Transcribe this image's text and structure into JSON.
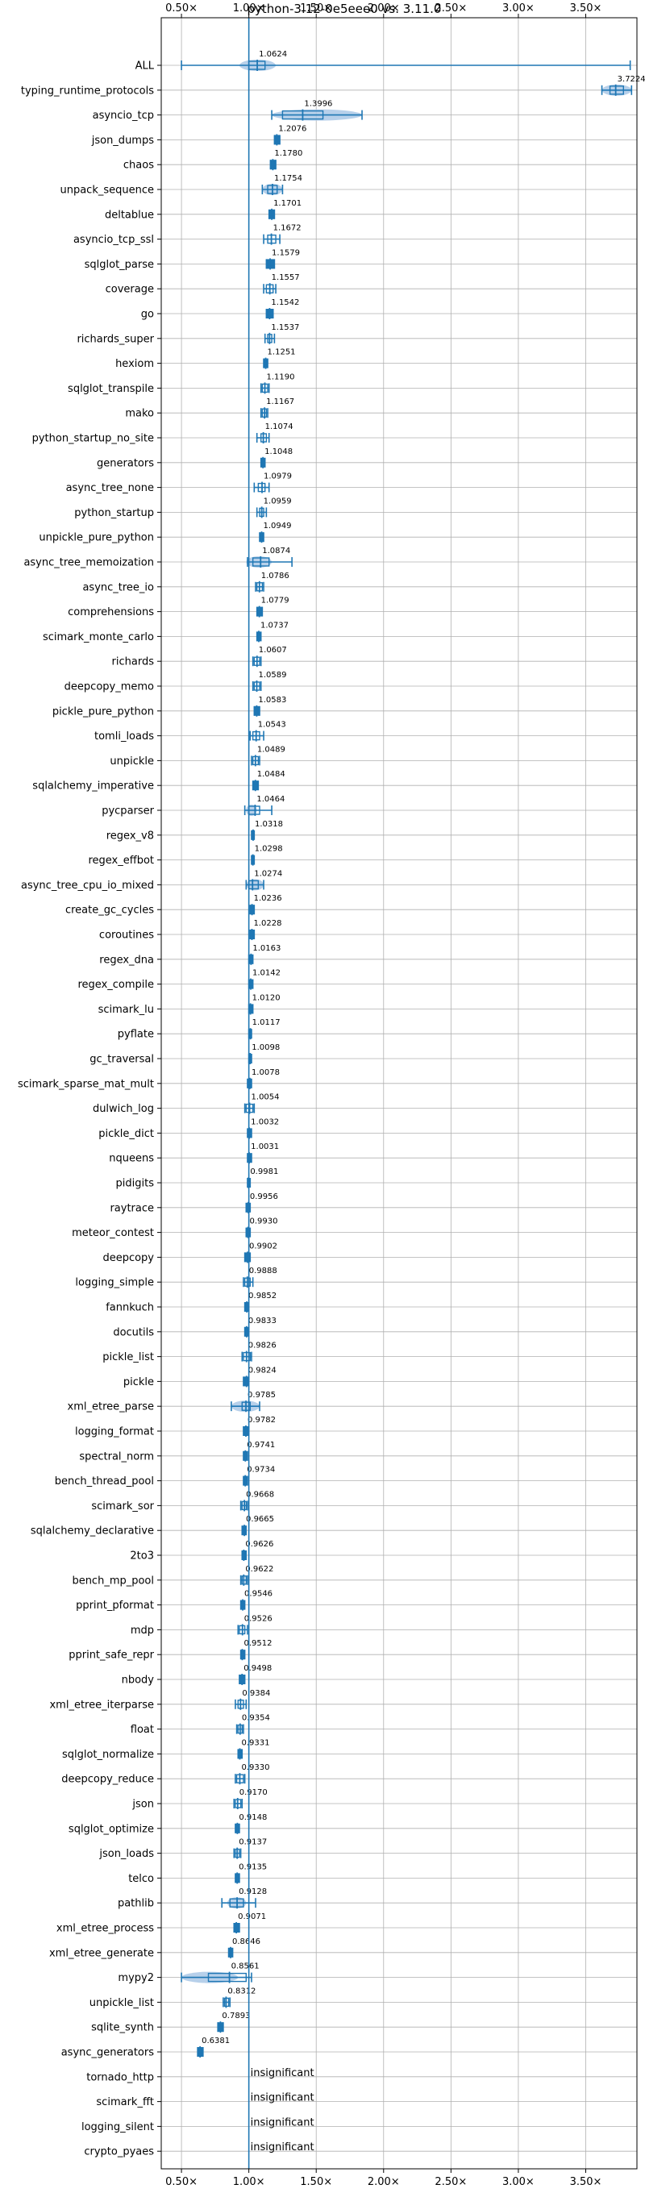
{
  "chart_data": {
    "type": "violin",
    "title": "python-3.12-0e5eee0 vs. 3.11.0",
    "xlim": [
      0.35,
      3.88
    ],
    "reference_line": 1.0,
    "x_ticks": [
      0.5,
      1.0,
      1.5,
      2.0,
      2.5,
      3.0,
      3.5
    ],
    "x_tick_labels": [
      "0.50×",
      "1.00×",
      "1.50×",
      "2.00×",
      "2.50×",
      "3.00×",
      "3.50×"
    ],
    "grid": true,
    "color": "#1f77b4",
    "violin_color": "#aac8e6",
    "benchmarks": [
      {
        "name": "ALL",
        "value": 1.0624,
        "label": "1.0624",
        "min": 0.5,
        "max": 3.83,
        "q1": 1.0,
        "q3": 1.12,
        "vmin": 0.93,
        "vmax": 1.2
      },
      {
        "name": "typing_runtime_protocols",
        "value": 3.7224,
        "label": "3.7224",
        "min": 3.62,
        "max": 3.84,
        "q1": 3.68,
        "q3": 3.78
      },
      {
        "name": "asyncio_tcp",
        "value": 1.3996,
        "label": "1.3996",
        "min": 1.17,
        "max": 1.84,
        "q1": 1.25,
        "q3": 1.55
      },
      {
        "name": "json_dumps",
        "value": 1.2076,
        "label": "1.2076",
        "min": 1.19,
        "max": 1.23
      },
      {
        "name": "chaos",
        "value": 1.178,
        "label": "1.1780",
        "min": 1.16,
        "max": 1.2
      },
      {
        "name": "unpack_sequence",
        "value": 1.1754,
        "label": "1.1754",
        "min": 1.1,
        "max": 1.25,
        "q1": 1.14,
        "q3": 1.21
      },
      {
        "name": "deltablue",
        "value": 1.1701,
        "label": "1.1701",
        "min": 1.15,
        "max": 1.19
      },
      {
        "name": "asyncio_tcp_ssl",
        "value": 1.1672,
        "label": "1.1672",
        "min": 1.11,
        "max": 1.23,
        "q1": 1.14,
        "q3": 1.2
      },
      {
        "name": "sqlglot_parse",
        "value": 1.1579,
        "label": "1.1579",
        "min": 1.13,
        "max": 1.19
      },
      {
        "name": "coverage",
        "value": 1.1557,
        "label": "1.1557",
        "min": 1.11,
        "max": 1.2,
        "q1": 1.13,
        "q3": 1.18
      },
      {
        "name": "go",
        "value": 1.1542,
        "label": "1.1542",
        "min": 1.13,
        "max": 1.18
      },
      {
        "name": "richards_super",
        "value": 1.1537,
        "label": "1.1537",
        "min": 1.12,
        "max": 1.19,
        "q1": 1.14,
        "q3": 1.17
      },
      {
        "name": "hexiom",
        "value": 1.1251,
        "label": "1.1251",
        "min": 1.11,
        "max": 1.14
      },
      {
        "name": "sqlglot_transpile",
        "value": 1.119,
        "label": "1.1190",
        "min": 1.09,
        "max": 1.15,
        "q1": 1.1,
        "q3": 1.14
      },
      {
        "name": "mako",
        "value": 1.1167,
        "label": "1.1167",
        "min": 1.09,
        "max": 1.14,
        "q1": 1.1,
        "q3": 1.13
      },
      {
        "name": "python_startup_no_site",
        "value": 1.1074,
        "label": "1.1074",
        "min": 1.06,
        "max": 1.15,
        "q1": 1.09,
        "q3": 1.13
      },
      {
        "name": "generators",
        "value": 1.1048,
        "label": "1.1048",
        "min": 1.09,
        "max": 1.12
      },
      {
        "name": "async_tree_none",
        "value": 1.0979,
        "label": "1.0979",
        "min": 1.04,
        "max": 1.15,
        "q1": 1.07,
        "q3": 1.12
      },
      {
        "name": "python_startup",
        "value": 1.0959,
        "label": "1.0959",
        "min": 1.06,
        "max": 1.13,
        "q1": 1.08,
        "q3": 1.11
      },
      {
        "name": "unpickle_pure_python",
        "value": 1.0949,
        "label": "1.0949",
        "min": 1.08,
        "max": 1.11
      },
      {
        "name": "async_tree_memoization",
        "value": 1.0874,
        "label": "1.0874",
        "min": 0.99,
        "max": 1.32,
        "q1": 1.03,
        "q3": 1.15,
        "vmin": 0.98,
        "vmax": 1.17
      },
      {
        "name": "async_tree_io",
        "value": 1.0786,
        "label": "1.0786",
        "min": 1.05,
        "max": 1.11,
        "q1": 1.06,
        "q3": 1.1
      },
      {
        "name": "comprehensions",
        "value": 1.0779,
        "label": "1.0779",
        "min": 1.06,
        "max": 1.1
      },
      {
        "name": "scimark_monte_carlo",
        "value": 1.0737,
        "label": "1.0737",
        "min": 1.06,
        "max": 1.09
      },
      {
        "name": "richards",
        "value": 1.0607,
        "label": "1.0607",
        "min": 1.03,
        "max": 1.09,
        "q1": 1.04,
        "q3": 1.08
      },
      {
        "name": "deepcopy_memo",
        "value": 1.0589,
        "label": "1.0589",
        "min": 1.03,
        "max": 1.09,
        "q1": 1.04,
        "q3": 1.08
      },
      {
        "name": "pickle_pure_python",
        "value": 1.0583,
        "label": "1.0583",
        "min": 1.04,
        "max": 1.08
      },
      {
        "name": "tomli_loads",
        "value": 1.0543,
        "label": "1.0543",
        "min": 1.01,
        "max": 1.11,
        "q1": 1.03,
        "q3": 1.08
      },
      {
        "name": "unpickle",
        "value": 1.0489,
        "label": "1.0489",
        "min": 1.02,
        "max": 1.08,
        "q1": 1.03,
        "q3": 1.07
      },
      {
        "name": "sqlalchemy_imperative",
        "value": 1.0484,
        "label": "1.0484",
        "min": 1.03,
        "max": 1.07
      },
      {
        "name": "pycparser",
        "value": 1.0464,
        "label": "1.0464",
        "min": 0.97,
        "max": 1.17,
        "q1": 1.0,
        "q3": 1.08,
        "vmin": 0.98,
        "vmax": 1.06
      },
      {
        "name": "regex_v8",
        "value": 1.0318,
        "label": "1.0318",
        "min": 1.02,
        "max": 1.04
      },
      {
        "name": "regex_effbot",
        "value": 1.0298,
        "label": "1.0298",
        "min": 1.02,
        "max": 1.04
      },
      {
        "name": "async_tree_cpu_io_mixed",
        "value": 1.0274,
        "label": "1.0274",
        "min": 0.98,
        "max": 1.11,
        "q1": 1.0,
        "q3": 1.07
      },
      {
        "name": "create_gc_cycles",
        "value": 1.0236,
        "label": "1.0236",
        "min": 1.01,
        "max": 1.04
      },
      {
        "name": "coroutines",
        "value": 1.0228,
        "label": "1.0228",
        "min": 1.01,
        "max": 1.04
      },
      {
        "name": "regex_dna",
        "value": 1.0163,
        "label": "1.0163",
        "min": 1.0,
        "max": 1.03
      },
      {
        "name": "regex_compile",
        "value": 1.0142,
        "label": "1.0142",
        "min": 1.0,
        "max": 1.03
      },
      {
        "name": "scimark_lu",
        "value": 1.012,
        "label": "1.0120",
        "min": 1.0,
        "max": 1.03
      },
      {
        "name": "pyflate",
        "value": 1.0117,
        "label": "1.0117",
        "min": 1.0,
        "max": 1.02
      },
      {
        "name": "gc_traversal",
        "value": 1.0098,
        "label": "1.0098",
        "min": 1.0,
        "max": 1.02
      },
      {
        "name": "scimark_sparse_mat_mult",
        "value": 1.0078,
        "label": "1.0078",
        "min": 0.99,
        "max": 1.02
      },
      {
        "name": "dulwich_log",
        "value": 1.0054,
        "label": "1.0054",
        "min": 0.97,
        "max": 1.04,
        "q1": 0.98,
        "q3": 1.03
      },
      {
        "name": "pickle_dict",
        "value": 1.0032,
        "label": "1.0032",
        "min": 0.99,
        "max": 1.02
      },
      {
        "name": "nqueens",
        "value": 1.0031,
        "label": "1.0031",
        "min": 0.99,
        "max": 1.02
      },
      {
        "name": "pidigits",
        "value": 0.9981,
        "label": "0.9981",
        "min": 0.99,
        "max": 1.01
      },
      {
        "name": "raytrace",
        "value": 0.9956,
        "label": "0.9956",
        "min": 0.98,
        "max": 1.01
      },
      {
        "name": "meteor_contest",
        "value": 0.993,
        "label": "0.9930",
        "min": 0.98,
        "max": 1.01
      },
      {
        "name": "deepcopy",
        "value": 0.9902,
        "label": "0.9902",
        "min": 0.97,
        "max": 1.01
      },
      {
        "name": "logging_simple",
        "value": 0.9888,
        "label": "0.9888",
        "min": 0.96,
        "max": 1.03,
        "q1": 0.97,
        "q3": 1.01
      },
      {
        "name": "fannkuch",
        "value": 0.9852,
        "label": "0.9852",
        "min": 0.97,
        "max": 1.0
      },
      {
        "name": "docutils",
        "value": 0.9833,
        "label": "0.9833",
        "min": 0.97,
        "max": 1.0
      },
      {
        "name": "pickle_list",
        "value": 0.9826,
        "label": "0.9826",
        "min": 0.95,
        "max": 1.02,
        "q1": 0.96,
        "q3": 1.01
      },
      {
        "name": "pickle",
        "value": 0.9824,
        "label": "0.9824",
        "min": 0.96,
        "max": 1.0
      },
      {
        "name": "xml_etree_parse",
        "value": 0.9785,
        "label": "0.9785",
        "min": 0.87,
        "max": 1.08,
        "q1": 0.95,
        "q3": 1.01
      },
      {
        "name": "logging_format",
        "value": 0.9782,
        "label": "0.9782",
        "min": 0.96,
        "max": 1.0
      },
      {
        "name": "spectral_norm",
        "value": 0.9741,
        "label": "0.9741",
        "min": 0.96,
        "max": 0.99
      },
      {
        "name": "bench_thread_pool",
        "value": 0.9734,
        "label": "0.9734",
        "min": 0.96,
        "max": 0.99
      },
      {
        "name": "scimark_sor",
        "value": 0.9668,
        "label": "0.9668",
        "min": 0.94,
        "max": 0.99,
        "q1": 0.95,
        "q3": 0.98
      },
      {
        "name": "sqlalchemy_declarative",
        "value": 0.9665,
        "label": "0.9665",
        "min": 0.95,
        "max": 0.98
      },
      {
        "name": "2to3",
        "value": 0.9626,
        "label": "0.9626",
        "min": 0.95,
        "max": 0.98
      },
      {
        "name": "bench_mp_pool",
        "value": 0.9622,
        "label": "0.9622",
        "min": 0.94,
        "max": 0.99,
        "q1": 0.95,
        "q3": 0.98
      },
      {
        "name": "pprint_pformat",
        "value": 0.9546,
        "label": "0.9546",
        "min": 0.94,
        "max": 0.97
      },
      {
        "name": "mdp",
        "value": 0.9526,
        "label": "0.9526",
        "min": 0.92,
        "max": 0.99,
        "q1": 0.93,
        "q3": 0.97
      },
      {
        "name": "pprint_safe_repr",
        "value": 0.9512,
        "label": "0.9512",
        "min": 0.94,
        "max": 0.97
      },
      {
        "name": "nbody",
        "value": 0.9498,
        "label": "0.9498",
        "min": 0.93,
        "max": 0.97
      },
      {
        "name": "xml_etree_iterparse",
        "value": 0.9384,
        "label": "0.9384",
        "min": 0.9,
        "max": 0.98,
        "q1": 0.92,
        "q3": 0.96
      },
      {
        "name": "float",
        "value": 0.9354,
        "label": "0.9354",
        "min": 0.91,
        "max": 0.96,
        "q1": 0.92,
        "q3": 0.95
      },
      {
        "name": "sqlglot_normalize",
        "value": 0.9331,
        "label": "0.9331",
        "min": 0.92,
        "max": 0.95
      },
      {
        "name": "deepcopy_reduce",
        "value": 0.933,
        "label": "0.9330",
        "min": 0.9,
        "max": 0.97,
        "q1": 0.91,
        "q3": 0.96
      },
      {
        "name": "json",
        "value": 0.917,
        "label": "0.9170",
        "min": 0.89,
        "max": 0.95,
        "q1": 0.9,
        "q3": 0.94
      },
      {
        "name": "sqlglot_optimize",
        "value": 0.9148,
        "label": "0.9148",
        "min": 0.9,
        "max": 0.93
      },
      {
        "name": "json_loads",
        "value": 0.9137,
        "label": "0.9137",
        "min": 0.89,
        "max": 0.94,
        "q1": 0.9,
        "q3": 0.93
      },
      {
        "name": "telco",
        "value": 0.9135,
        "label": "0.9135",
        "min": 0.9,
        "max": 0.93
      },
      {
        "name": "pathlib",
        "value": 0.9128,
        "label": "0.9128",
        "min": 0.8,
        "max": 1.05,
        "q1": 0.86,
        "q3": 0.96,
        "vmin": 0.84,
        "vmax": 0.98
      },
      {
        "name": "xml_etree_process",
        "value": 0.9071,
        "label": "0.9071",
        "min": 0.89,
        "max": 0.93
      },
      {
        "name": "xml_etree_generate",
        "value": 0.8646,
        "label": "0.8646",
        "min": 0.85,
        "max": 0.88
      },
      {
        "name": "mypy2",
        "value": 0.8561,
        "label": "0.8561",
        "min": 0.5,
        "max": 1.02,
        "q1": 0.7,
        "q3": 0.98,
        "vmin": 0.5,
        "vmax": 0.92
      },
      {
        "name": "unpickle_list",
        "value": 0.8312,
        "label": "0.8312",
        "min": 0.81,
        "max": 0.86,
        "q1": 0.82,
        "q3": 0.85
      },
      {
        "name": "sqlite_synth",
        "value": 0.7893,
        "label": "0.7893",
        "min": 0.77,
        "max": 0.81
      },
      {
        "name": "async_generators",
        "value": 0.6381,
        "label": "0.6381",
        "min": 0.62,
        "max": 0.66
      },
      {
        "name": "tornado_http",
        "value": null,
        "label": "insignificant"
      },
      {
        "name": "scimark_fft",
        "value": null,
        "label": "insignificant"
      },
      {
        "name": "logging_silent",
        "value": null,
        "label": "insignificant"
      },
      {
        "name": "crypto_pyaes",
        "value": null,
        "label": "insignificant"
      }
    ]
  }
}
